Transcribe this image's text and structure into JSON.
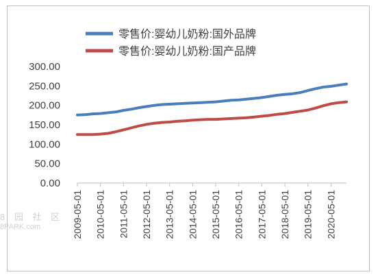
{
  "chart_data": {
    "type": "line",
    "title": "",
    "xlabel": "",
    "ylabel": "",
    "x_tick_labels": [
      "2009-05-01",
      "2010-05-01",
      "2011-05-01",
      "2012-05-01",
      "2013-05-01",
      "2014-05-01",
      "2015-05-01",
      "2016-05-01",
      "2017-05-01",
      "2018-05-01",
      "2019-05-01",
      "2020-05-01"
    ],
    "x_range": [
      "2009-05-01",
      "2021-01-01"
    ],
    "y_tick_labels": [
      "0.00",
      "50.00",
      "100.00",
      "150.00",
      "200.00",
      "250.00",
      "300.00"
    ],
    "ylim": [
      0,
      300
    ],
    "grid": false,
    "legend_position": "top",
    "series": [
      {
        "name": "零售价:婴幼儿奶粉:国外品牌",
        "color": "#4a7ebb",
        "points": [
          [
            "2009-05-01",
            175
          ],
          [
            "2009-09-01",
            176
          ],
          [
            "2010-01-01",
            178
          ],
          [
            "2010-05-01",
            179
          ],
          [
            "2010-09-01",
            181
          ],
          [
            "2011-01-01",
            183
          ],
          [
            "2011-05-01",
            187
          ],
          [
            "2011-09-01",
            190
          ],
          [
            "2012-01-01",
            194
          ],
          [
            "2012-05-01",
            197
          ],
          [
            "2012-09-01",
            200
          ],
          [
            "2013-01-01",
            202
          ],
          [
            "2013-05-01",
            203
          ],
          [
            "2013-09-01",
            204
          ],
          [
            "2014-01-01",
            205
          ],
          [
            "2014-05-01",
            206
          ],
          [
            "2014-09-01",
            207
          ],
          [
            "2015-01-01",
            208
          ],
          [
            "2015-05-01",
            209
          ],
          [
            "2015-09-01",
            211
          ],
          [
            "2016-01-01",
            213
          ],
          [
            "2016-05-01",
            214
          ],
          [
            "2016-09-01",
            216
          ],
          [
            "2017-01-01",
            218
          ],
          [
            "2017-05-01",
            220
          ],
          [
            "2017-09-01",
            223
          ],
          [
            "2018-01-01",
            226
          ],
          [
            "2018-05-01",
            228
          ],
          [
            "2018-09-01",
            230
          ],
          [
            "2019-01-01",
            233
          ],
          [
            "2019-05-01",
            238
          ],
          [
            "2019-09-01",
            243
          ],
          [
            "2020-01-01",
            247
          ],
          [
            "2020-05-01",
            249
          ],
          [
            "2020-09-01",
            252
          ],
          [
            "2021-01-01",
            255
          ]
        ]
      },
      {
        "name": "零售价:婴幼儿奶粉:国产品牌",
        "color": "#be4b48",
        "points": [
          [
            "2009-05-01",
            125
          ],
          [
            "2009-09-01",
            125
          ],
          [
            "2010-01-01",
            125
          ],
          [
            "2010-05-01",
            126
          ],
          [
            "2010-09-01",
            128
          ],
          [
            "2011-01-01",
            132
          ],
          [
            "2011-05-01",
            137
          ],
          [
            "2011-09-01",
            142
          ],
          [
            "2012-01-01",
            147
          ],
          [
            "2012-05-01",
            151
          ],
          [
            "2012-09-01",
            154
          ],
          [
            "2013-01-01",
            156
          ],
          [
            "2013-05-01",
            157
          ],
          [
            "2013-09-01",
            159
          ],
          [
            "2014-01-01",
            160
          ],
          [
            "2014-05-01",
            162
          ],
          [
            "2014-09-01",
            163
          ],
          [
            "2015-01-01",
            164
          ],
          [
            "2015-05-01",
            164
          ],
          [
            "2015-09-01",
            165
          ],
          [
            "2016-01-01",
            166
          ],
          [
            "2016-05-01",
            167
          ],
          [
            "2016-09-01",
            168
          ],
          [
            "2017-01-01",
            170
          ],
          [
            "2017-05-01",
            172
          ],
          [
            "2017-09-01",
            174
          ],
          [
            "2018-01-01",
            177
          ],
          [
            "2018-05-01",
            179
          ],
          [
            "2018-09-01",
            182
          ],
          [
            "2019-01-01",
            185
          ],
          [
            "2019-05-01",
            188
          ],
          [
            "2019-09-01",
            193
          ],
          [
            "2020-01-01",
            199
          ],
          [
            "2020-05-01",
            204
          ],
          [
            "2020-09-01",
            207
          ],
          [
            "2021-01-01",
            209
          ]
        ]
      }
    ]
  },
  "watermark": {
    "text_cn": "8 园 社 区",
    "text_en": "8PARK.com"
  }
}
